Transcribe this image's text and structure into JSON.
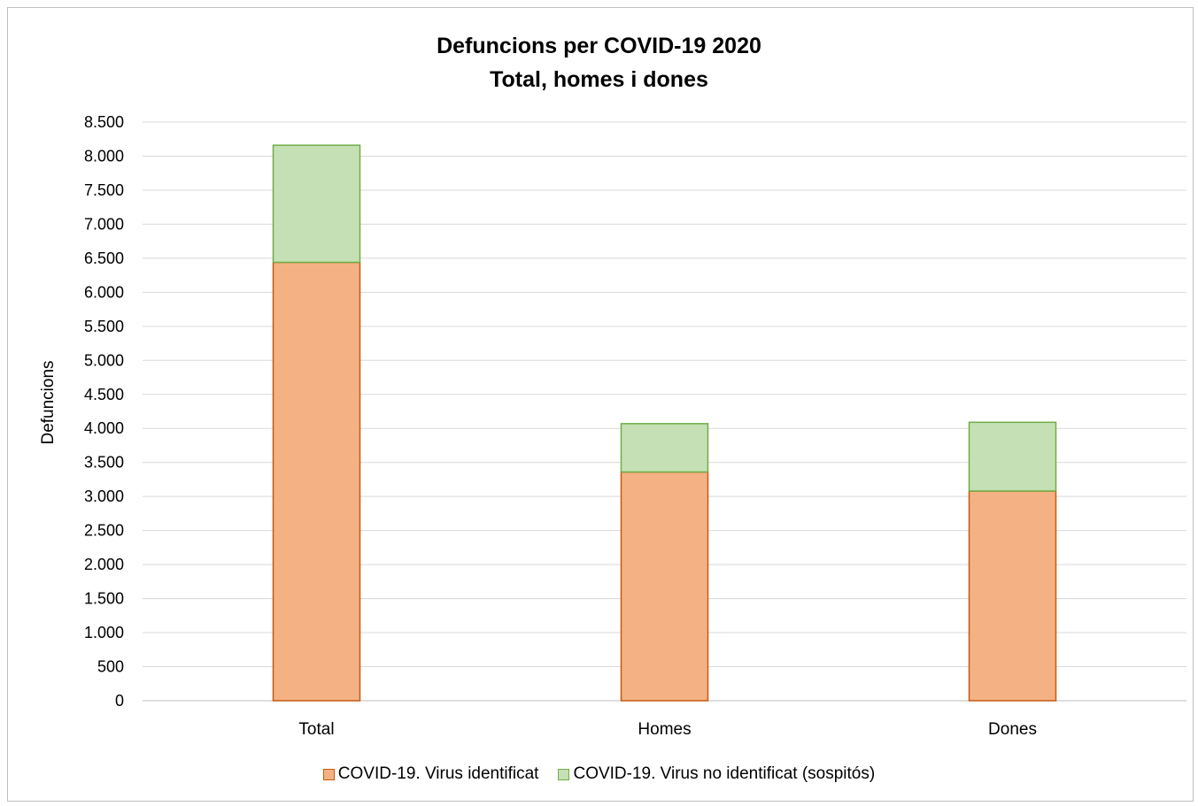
{
  "chart_data": {
    "type": "bar",
    "stacked": true,
    "title": "Defuncions per COVID-19 2020",
    "subtitle": "Total, homes i dones",
    "xlabel": "",
    "ylabel": "Defuncions",
    "ylim": [
      0,
      8500
    ],
    "yticks": [
      0,
      500,
      1000,
      1500,
      2000,
      2500,
      3000,
      3500,
      4000,
      4500,
      5000,
      5500,
      6000,
      6500,
      7000,
      7500,
      8000,
      8500
    ],
    "ytick_labels": [
      "0",
      "500",
      "1.000",
      "1.500",
      "2.000",
      "2.500",
      "3.000",
      "3.500",
      "4.000",
      "4.500",
      "5.000",
      "5.500",
      "6.000",
      "6.500",
      "7.000",
      "7.500",
      "8.000",
      "8.500"
    ],
    "categories": [
      "Total",
      "Homes",
      "Dones"
    ],
    "grid": true,
    "legend_position": "bottom",
    "series": [
      {
        "name": "COVID-19. Virus identificat",
        "values": [
          6440,
          3360,
          3080
        ],
        "color": "#f4b183",
        "edge": "#c55a11"
      },
      {
        "name": "COVID-19. Virus no identificat (sospitós)",
        "values": [
          1720,
          710,
          1010
        ],
        "color": "#c5e0b4",
        "edge": "#70ad47"
      }
    ]
  }
}
